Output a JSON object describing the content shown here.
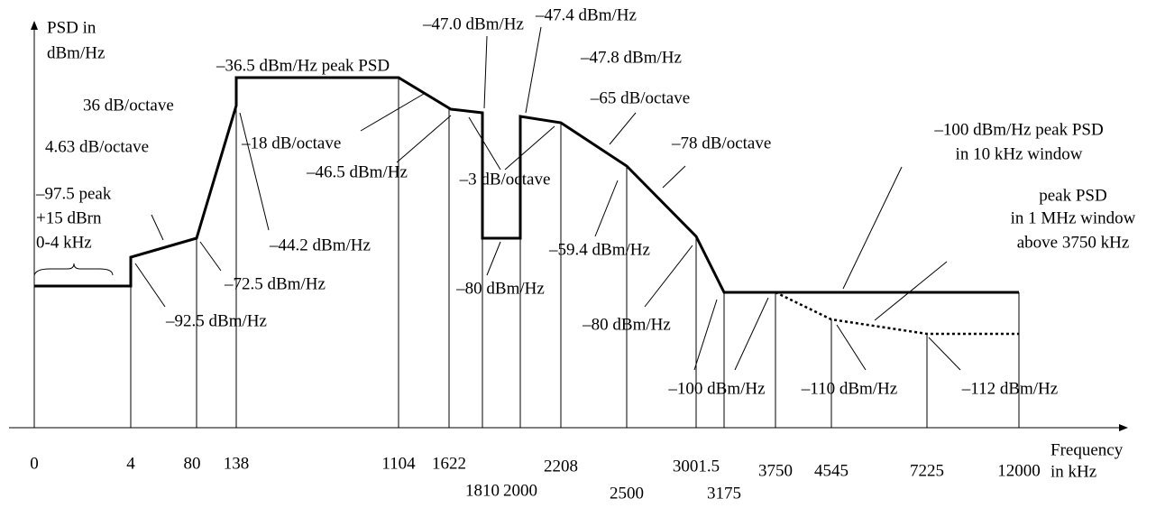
{
  "axes": {
    "y_label": [
      "PSD in",
      "dBm/Hz"
    ],
    "x_label": [
      "Frequency",
      "in kHz"
    ]
  },
  "frequencies": [
    "0",
    "4",
    "80",
    "138",
    "1104",
    "1622",
    "1810",
    "2000",
    "2208",
    "2500",
    "3001.5",
    "3175",
    "3750",
    "4545",
    "7225",
    "12000"
  ],
  "annotations": [
    "–36.5 dBm/Hz peak PSD",
    "–47.0 dBm/Hz",
    "–47.4 dBm/Hz",
    "–47.8 dBm/Hz",
    "36 dB/octave",
    "–65 dB/octave",
    "4.63 dB/octave",
    "–18 dB/octave",
    "–46.5 dBm/Hz",
    "–78 dB/octave",
    "–100 dBm/Hz peak PSD",
    "in 10 kHz window",
    "–97.5 peak",
    "+15 dBrn",
    "0-4 kHz",
    "–3 dB/octave",
    "–59.4 dBm/Hz",
    "peak PSD",
    "in 1 MHz window",
    "above 3750 kHz",
    "–44.2 dBm/Hz",
    "–72.5 dBm/Hz",
    "–80 dBm/Hz",
    "–92.5 dBm/Hz",
    "–80 dBm/Hz",
    "–100 dBm/Hz",
    "–110 dBm/Hz",
    "–112 dBm/Hz"
  ]
}
